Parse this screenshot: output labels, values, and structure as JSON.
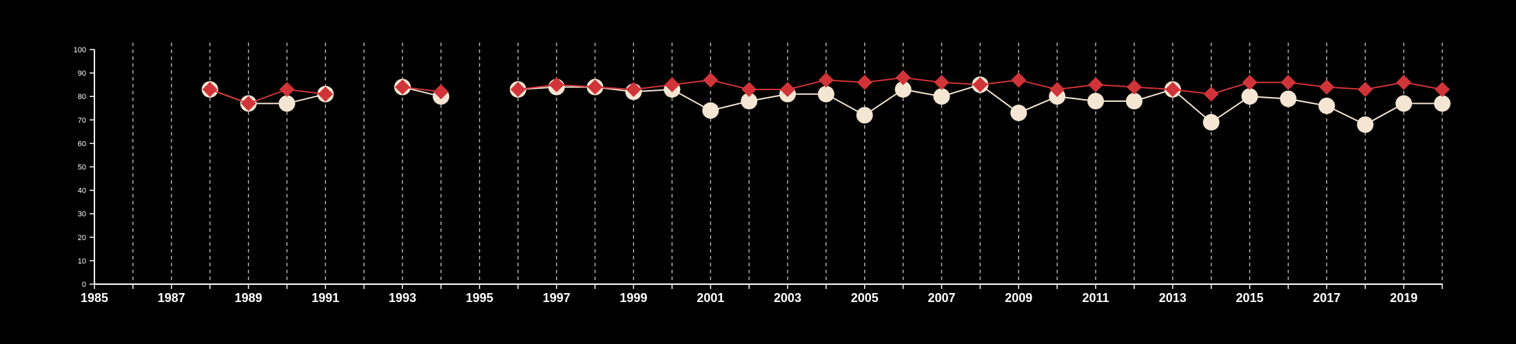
{
  "chart_data": {
    "type": "line",
    "xlim": [
      1985,
      2020
    ],
    "ylim": [
      0,
      100
    ],
    "x_ticks": [
      "1985",
      "1987",
      "1989",
      "1991",
      "1993",
      "1995",
      "1997",
      "1999",
      "2001",
      "2003",
      "2005",
      "2007",
      "2009",
      "2011",
      "2013",
      "2015",
      "2017",
      "2019"
    ],
    "y_ticks": [
      "0",
      "10",
      "20",
      "30",
      "40",
      "50",
      "60",
      "70",
      "80",
      "90",
      "100"
    ],
    "grid": "vertical dashed lines at each year",
    "series": [
      {
        "marker": "circle",
        "color": "#f5e6d3",
        "points": [
          [
            1988,
            83
          ],
          [
            1989,
            77
          ],
          [
            1990,
            77
          ],
          [
            1991,
            81
          ],
          [
            1993,
            84
          ],
          [
            1994,
            80
          ],
          [
            1996,
            83
          ],
          [
            1997,
            84
          ],
          [
            1998,
            84
          ],
          [
            1999,
            82
          ],
          [
            2000,
            83
          ],
          [
            2001,
            74
          ],
          [
            2002,
            78
          ],
          [
            2003,
            81
          ],
          [
            2004,
            81
          ],
          [
            2005,
            72
          ],
          [
            2006,
            83
          ],
          [
            2007,
            80
          ],
          [
            2008,
            85
          ],
          [
            2009,
            73
          ],
          [
            2010,
            80
          ],
          [
            2011,
            78
          ],
          [
            2012,
            78
          ],
          [
            2013,
            83
          ],
          [
            2014,
            69
          ],
          [
            2015,
            80
          ],
          [
            2016,
            79
          ],
          [
            2017,
            76
          ],
          [
            2018,
            68
          ],
          [
            2019,
            77
          ],
          [
            2020,
            77
          ]
        ]
      },
      {
        "marker": "diamond",
        "color": "#d13438",
        "points": [
          [
            1988,
            83
          ],
          [
            1989,
            77
          ],
          [
            1990,
            83
          ],
          [
            1991,
            81
          ],
          [
            1993,
            84
          ],
          [
            1994,
            82
          ],
          [
            1996,
            83
          ],
          [
            1997,
            85
          ],
          [
            1998,
            84
          ],
          [
            1999,
            83
          ],
          [
            2000,
            85
          ],
          [
            2001,
            87
          ],
          [
            2002,
            83
          ],
          [
            2003,
            83
          ],
          [
            2004,
            87
          ],
          [
            2005,
            86
          ],
          [
            2006,
            88
          ],
          [
            2007,
            86
          ],
          [
            2008,
            85
          ],
          [
            2009,
            87
          ],
          [
            2010,
            83
          ],
          [
            2011,
            85
          ],
          [
            2012,
            84
          ],
          [
            2013,
            83
          ],
          [
            2014,
            81
          ],
          [
            2015,
            86
          ],
          [
            2016,
            86
          ],
          [
            2017,
            84
          ],
          [
            2018,
            83
          ],
          [
            2019,
            86
          ],
          [
            2020,
            83
          ]
        ]
      }
    ]
  }
}
